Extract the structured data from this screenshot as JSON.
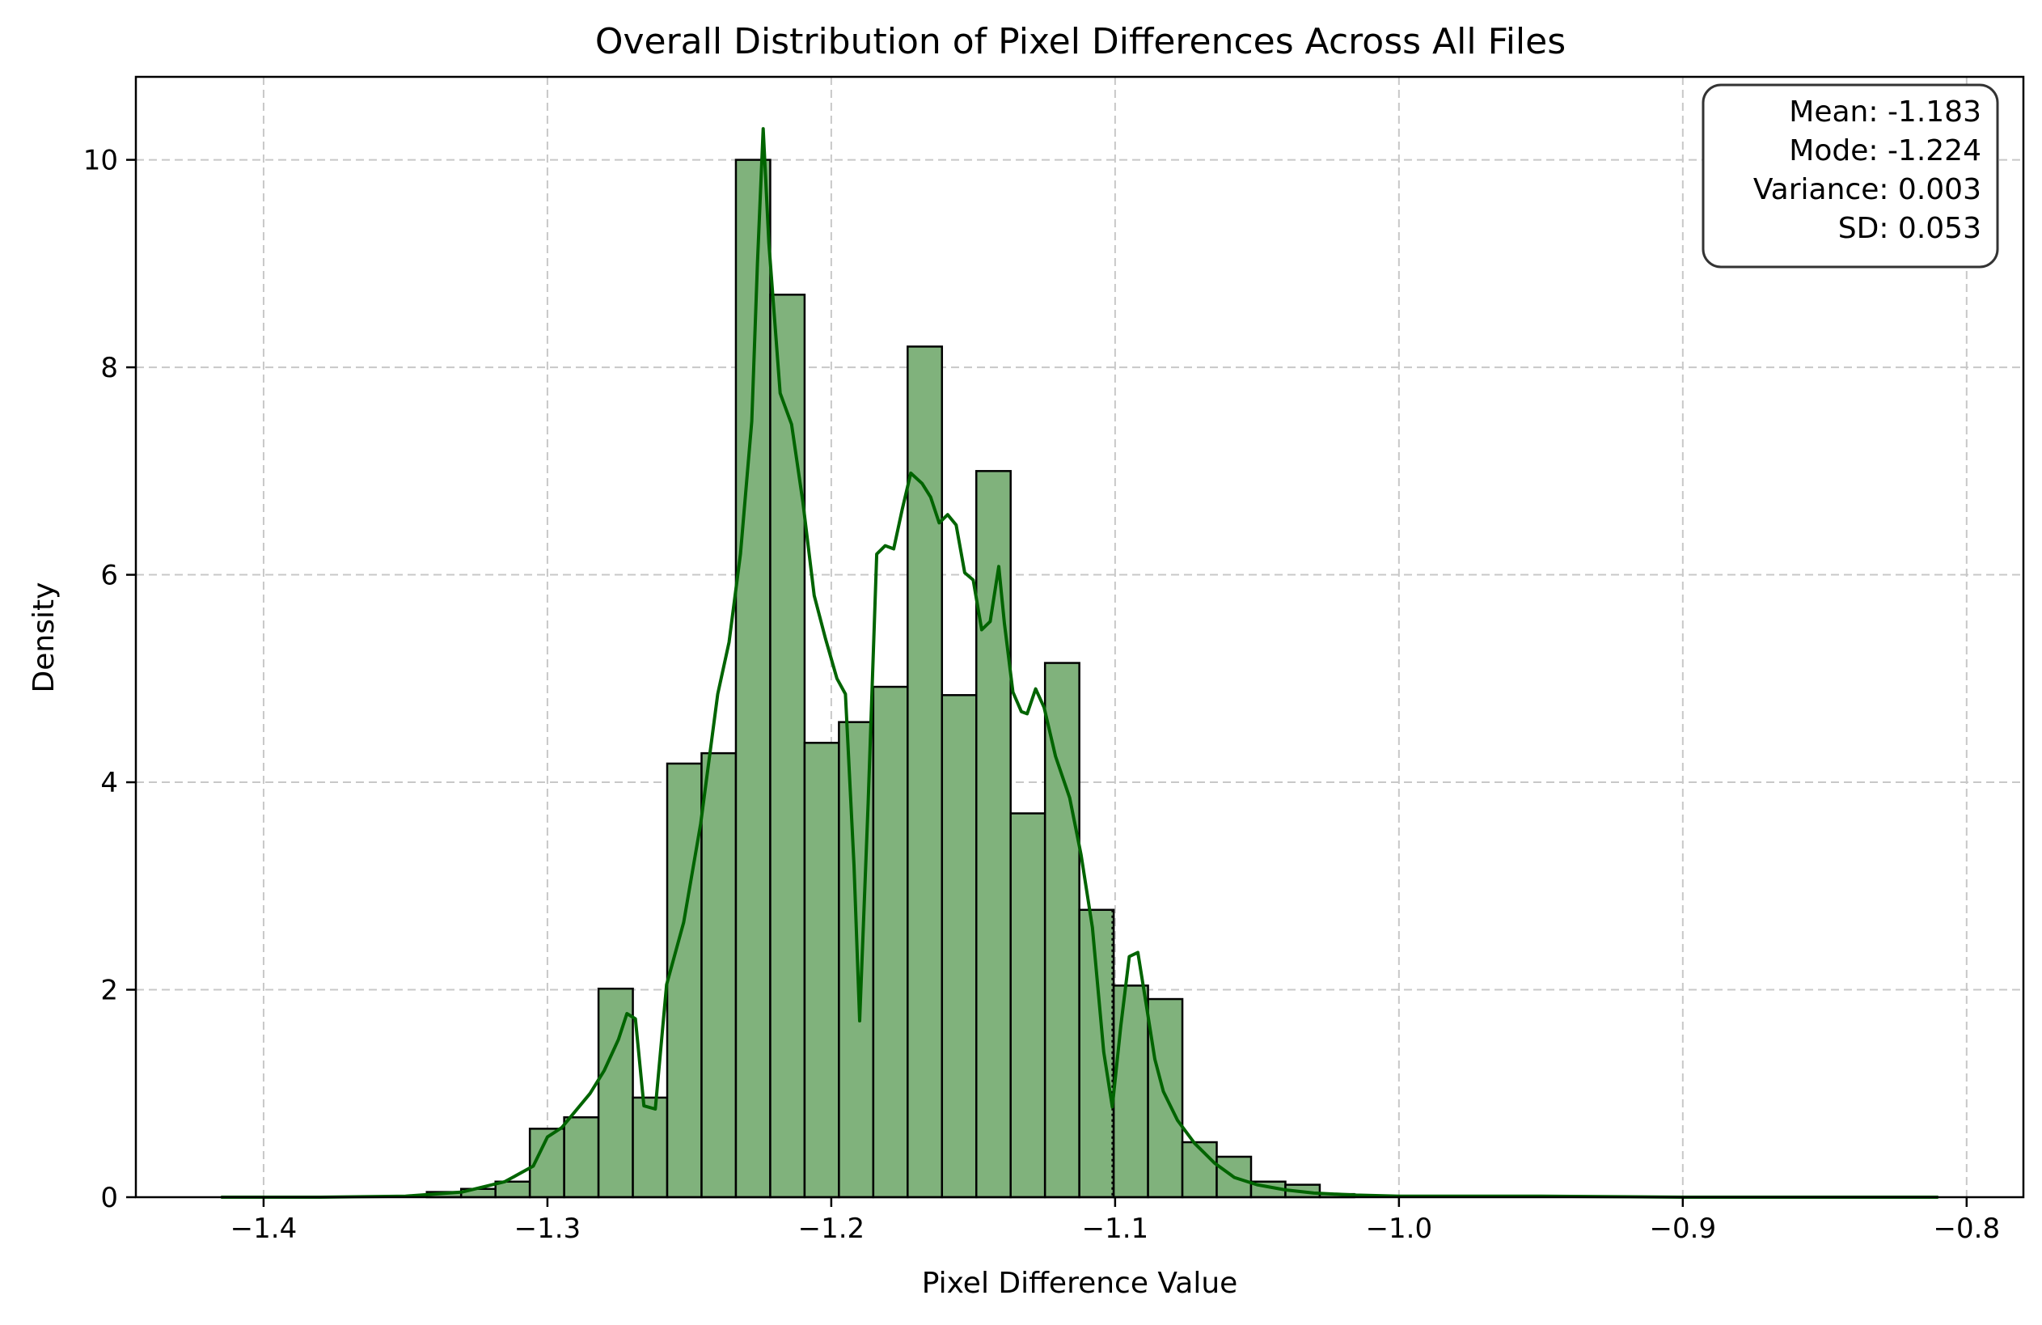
{
  "chart_data": {
    "type": "histogram",
    "title": "Overall Distribution of Pixel Differences Across All Files",
    "xlabel": "Pixel Difference Value",
    "ylabel": "Density",
    "xlim": [
      -1.445,
      -0.78
    ],
    "ylim": [
      0,
      10.8
    ],
    "x_ticks": [
      -1.4,
      -1.3,
      -1.2,
      -1.1,
      -1.0,
      -0.9,
      -0.8
    ],
    "x_tick_labels": [
      "−1.4",
      "−1.3",
      "−1.2",
      "−1.1",
      "−1.0",
      "−0.9",
      "−0.8"
    ],
    "y_ticks": [
      0,
      2,
      4,
      6,
      8,
      10
    ],
    "y_tick_labels": [
      "0",
      "2",
      "4",
      "6",
      "8",
      "10"
    ],
    "grid": true,
    "bin_width": 0.0121,
    "bins": [
      {
        "left": -1.3425,
        "density": 0.05
      },
      {
        "left": -1.3304,
        "density": 0.08
      },
      {
        "left": -1.3183,
        "density": 0.15
      },
      {
        "left": -1.3062,
        "density": 0.66
      },
      {
        "left": -1.2941,
        "density": 0.77
      },
      {
        "left": -1.282,
        "density": 2.01
      },
      {
        "left": -1.2699,
        "density": 0.96
      },
      {
        "left": -1.2578,
        "density": 4.18
      },
      {
        "left": -1.2457,
        "density": 4.28
      },
      {
        "left": -1.2336,
        "density": 10.0
      },
      {
        "left": -1.2215,
        "density": 8.7
      },
      {
        "left": -1.2094,
        "density": 4.38
      },
      {
        "left": -1.1973,
        "density": 4.58
      },
      {
        "left": -1.1852,
        "density": 4.92
      },
      {
        "left": -1.1731,
        "density": 8.2
      },
      {
        "left": -1.161,
        "density": 4.84
      },
      {
        "left": -1.1489,
        "density": 7.0
      },
      {
        "left": -1.1368,
        "density": 3.7
      },
      {
        "left": -1.1247,
        "density": 5.15
      },
      {
        "left": -1.1126,
        "density": 2.77
      },
      {
        "left": -1.1005,
        "density": 2.04
      },
      {
        "left": -1.0884,
        "density": 1.91
      },
      {
        "left": -1.0763,
        "density": 0.53
      },
      {
        "left": -1.0642,
        "density": 0.39
      },
      {
        "left": -1.0521,
        "density": 0.15
      },
      {
        "left": -1.04,
        "density": 0.12
      },
      {
        "left": -1.0279,
        "density": 0.03
      }
    ],
    "kde": {
      "name": "KDE",
      "x": [
        -1.415,
        -1.38,
        -1.35,
        -1.33,
        -1.315,
        -1.305,
        -1.3,
        -1.295,
        -1.285,
        -1.28,
        -1.275,
        -1.272,
        -1.269,
        -1.266,
        -1.262,
        -1.258,
        -1.252,
        -1.246,
        -1.24,
        -1.236,
        -1.232,
        -1.228,
        -1.226,
        -1.224,
        -1.222,
        -1.218,
        -1.214,
        -1.21,
        -1.206,
        -1.202,
        -1.198,
        -1.195,
        -1.192,
        -1.19,
        -1.187,
        -1.184,
        -1.181,
        -1.178,
        -1.175,
        -1.172,
        -1.168,
        -1.165,
        -1.162,
        -1.159,
        -1.156,
        -1.153,
        -1.15,
        -1.147,
        -1.144,
        -1.141,
        -1.139,
        -1.136,
        -1.133,
        -1.131,
        -1.128,
        -1.125,
        -1.121,
        -1.116,
        -1.112,
        -1.108,
        -1.104,
        -1.101,
        -1.098,
        -1.095,
        -1.092,
        -1.089,
        -1.086,
        -1.083,
        -1.078,
        -1.072,
        -1.065,
        -1.058,
        -1.05,
        -1.04,
        -1.03,
        -1.015,
        -1.0,
        -0.95,
        -0.9,
        -0.85,
        -0.81
      ],
      "y": [
        0.0,
        0.0,
        0.01,
        0.05,
        0.15,
        0.3,
        0.58,
        0.67,
        1.0,
        1.22,
        1.52,
        1.77,
        1.72,
        0.88,
        0.85,
        2.05,
        2.65,
        3.6,
        4.85,
        5.35,
        6.2,
        7.48,
        9.0,
        10.3,
        9.2,
        7.75,
        7.45,
        6.7,
        5.8,
        5.38,
        5.0,
        4.85,
        3.2,
        1.7,
        3.8,
        6.2,
        6.28,
        6.25,
        6.63,
        6.98,
        6.88,
        6.75,
        6.5,
        6.58,
        6.48,
        6.02,
        5.95,
        5.47,
        5.55,
        6.08,
        5.53,
        4.87,
        4.68,
        4.66,
        4.9,
        4.72,
        4.25,
        3.85,
        3.3,
        2.6,
        1.4,
        0.87,
        1.65,
        2.32,
        2.36,
        1.85,
        1.33,
        1.02,
        0.74,
        0.52,
        0.33,
        0.19,
        0.12,
        0.07,
        0.04,
        0.02,
        0.01,
        0.01,
        0.0,
        0.0,
        0.0
      ]
    },
    "dotted_marker_x": -1.101,
    "stats_box": {
      "location": "top-right",
      "lines": [
        "Mean: -1.183",
        "Mode: -1.224",
        "Variance: 0.003",
        "SD: 0.053"
      ]
    },
    "colors": {
      "bar_fill": "#80b27c",
      "bar_edge": "#000000",
      "kde_line": "#006400",
      "grid": "#c8c8c8"
    }
  }
}
